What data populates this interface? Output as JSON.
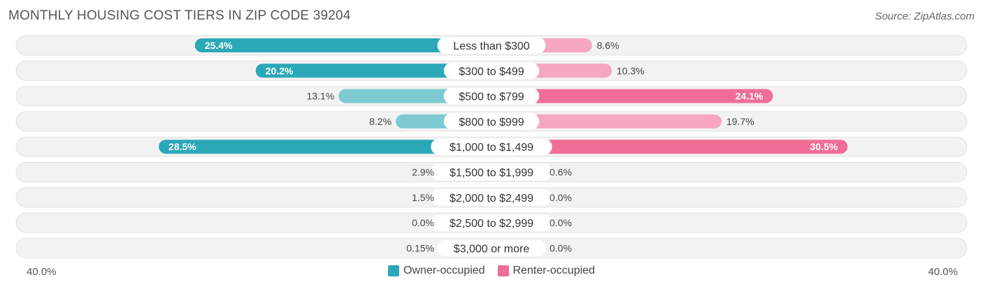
{
  "title": "MONTHLY HOUSING COST TIERS IN ZIP CODE 39204",
  "source": "Source: ZipAtlas.com",
  "colors": {
    "owner": "#2ba8b8",
    "owner_light": "#7dcad3",
    "renter": "#f06d96",
    "renter_light": "#f6a6c0",
    "track": "#efefef"
  },
  "axis": {
    "left_label": "40.0%",
    "right_label": "40.0%"
  },
  "legend": {
    "owner": "Owner-occupied",
    "renter": "Renter-occupied"
  },
  "chart_data": {
    "type": "bar",
    "orientation": "horizontal-diverging",
    "xlim": [
      -40,
      40
    ],
    "categories": [
      "Less than $300",
      "$300 to $499",
      "$500 to $799",
      "$800 to $999",
      "$1,000 to $1,499",
      "$1,500 to $1,999",
      "$2,000 to $2,499",
      "$2,500 to $2,999",
      "$3,000 or more"
    ],
    "series": [
      {
        "name": "Owner-occupied",
        "values": [
          25.4,
          20.2,
          13.1,
          8.2,
          28.5,
          2.9,
          1.5,
          0.0,
          0.15
        ],
        "labels": [
          "25.4%",
          "20.2%",
          "13.1%",
          "8.2%",
          "28.5%",
          "2.9%",
          "1.5%",
          "0.0%",
          "0.15%"
        ]
      },
      {
        "name": "Renter-occupied",
        "values": [
          8.6,
          10.3,
          24.1,
          19.7,
          30.5,
          0.6,
          0.0,
          0.0,
          0.0
        ],
        "labels": [
          "8.6%",
          "10.3%",
          "24.1%",
          "19.7%",
          "30.5%",
          "0.6%",
          "0.0%",
          "0.0%",
          "0.0%"
        ]
      }
    ]
  }
}
